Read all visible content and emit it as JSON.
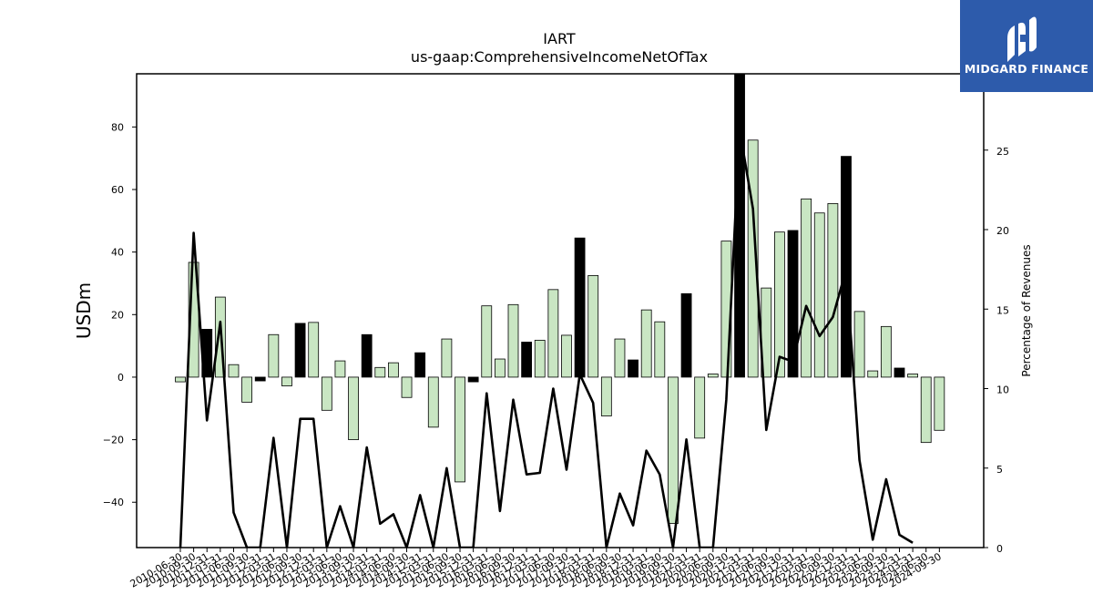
{
  "chart_data": {
    "type": "bar",
    "title": "IART",
    "subtitle": "us-gaap:ComprehensiveIncomeNetOfTax",
    "ylabel": "USDm",
    "ylabel_right": "Percentage of Revenues",
    "ylim": [
      -54.5,
      97
    ],
    "ylim_right": [
      0,
      29.8
    ],
    "yticks": [
      -40,
      -20,
      0,
      20,
      40,
      60,
      80
    ],
    "yticks_right": [
      0,
      5,
      10,
      15,
      20,
      25
    ],
    "x_tick_labels": [
      "2010-06-30",
      "2010-09-30",
      "2010-12-31",
      "2011-03-31",
      "2011-06-30",
      "2011-09-30",
      "2011-12-31",
      "2012-03-31",
      "2012-06-30",
      "2012-09-30",
      "2012-12-31",
      "2013-03-31",
      "2013-06-30",
      "2013-09-30",
      "2013-12-31",
      "2014-03-31",
      "2014-06-30",
      "2014-09-30",
      "2014-12-31",
      "2015-03-31",
      "2015-06-30",
      "2015-09-30",
      "2015-12-31",
      "2016-03-31",
      "2016-06-30",
      "2016-09-30",
      "2016-12-31",
      "2017-03-31",
      "2017-06-30",
      "2017-09-30",
      "2017-12-31",
      "2018-03-31",
      "2018-06-30",
      "2018-09-30",
      "2018-12-31",
      "2019-03-31",
      "2019-06-30",
      "2019-09-30",
      "2019-12-31",
      "2020-03-31",
      "2020-06-30",
      "2020-09-30",
      "2020-12-31",
      "2021-03-31",
      "2021-06-30",
      "2021-09-30",
      "2021-12-31",
      "2022-03-31",
      "2022-06-30",
      "2022-09-30",
      "2022-12-31",
      "2023-03-31",
      "2023-06-30",
      "2023-09-30",
      "2023-12-31",
      "2024-03-31",
      "2024-06-30",
      "2024-09-30"
    ],
    "categories": [
      "2010-06-30",
      "2010-09-30",
      "2010-12-31",
      "2011-03-31",
      "2011-06-30",
      "2011-09-30",
      "2011-12-31",
      "2012-03-31",
      "2012-06-30",
      "2012-09-30",
      "2012-12-31",
      "2013-03-31",
      "2013-06-30",
      "2013-09-30",
      "2013-12-31",
      "2014-03-31",
      "2014-06-30",
      "2014-09-30",
      "2014-12-31",
      "2015-03-31",
      "2015-06-30",
      "2015-09-30",
      "2015-12-31",
      "2016-03-31",
      "2016-06-30",
      "2016-09-30",
      "2016-12-31",
      "2017-03-31",
      "2017-06-30",
      "2017-09-30",
      "2017-12-31",
      "2018-03-31",
      "2018-06-30",
      "2018-09-30",
      "2018-12-31",
      "2019-03-31",
      "2019-06-30",
      "2019-09-30",
      "2019-12-31",
      "2020-03-31",
      "2020-06-30",
      "2020-09-30",
      "2020-12-31",
      "2021-03-31",
      "2021-06-30",
      "2021-09-30",
      "2021-12-31",
      "2022-03-31",
      "2022-06-30",
      "2022-09-30",
      "2022-12-31",
      "2023-03-31",
      "2023-06-30",
      "2023-09-30",
      "2023-12-31",
      "2024-03-31",
      "2024-06-30",
      "2024-09-30"
    ],
    "series": [
      {
        "values": [
          -1.5,
          36.7,
          15.3,
          25.6,
          4.0,
          -8.0,
          -1.2,
          13.6,
          -2.8,
          17.2,
          17.5,
          -10.6,
          5.2,
          -20.0,
          13.6,
          3.1,
          4.6,
          -6.5,
          7.8,
          -16.0,
          12.2,
          -33.5,
          -1.5,
          22.8,
          5.8,
          23.2,
          11.2,
          11.8,
          28.0,
          13.4,
          44.5,
          32.5,
          -12.4,
          12.2,
          5.5,
          21.5,
          17.7,
          -46.8,
          26.7,
          -19.5,
          1.0,
          43.5,
          97.0,
          75.8,
          28.5,
          46.4,
          46.9,
          57.0,
          52.5,
          55.5,
          70.6,
          21.0,
          2.0,
          16.2,
          2.9,
          1.0,
          -20.9,
          -17.0
        ]
      },
      {
        "values": [
          0,
          19.8,
          8.0,
          14.2,
          2.2,
          0,
          0,
          6.9,
          0,
          8.1,
          8.1,
          0,
          2.6,
          0,
          6.3,
          1.5,
          2.1,
          0,
          3.3,
          0,
          5.0,
          0,
          0,
          9.7,
          2.3,
          9.3,
          4.6,
          4.7,
          10.0,
          4.9,
          10.9,
          9.1,
          0,
          3.4,
          1.4,
          6.1,
          4.6,
          0,
          6.8,
          0,
          0,
          9.3,
          26.3,
          21.3,
          7.4,
          12.0,
          11.7,
          15.2,
          13.3,
          14.5,
          17.5,
          5.5,
          0.5,
          4.3,
          0.8,
          0.3,
          null,
          null
        ]
      }
    ],
    "colors": {
      "positive_fill": "#c9e6c3",
      "highlight_fill": "#000000",
      "bar_edge": "#000000",
      "line": "#000000"
    },
    "highlight_indices": [
      2,
      6,
      9,
      14,
      18,
      22,
      26,
      30,
      34,
      38,
      42,
      46,
      50,
      54
    ]
  },
  "logo": {
    "text": "MIDGARD FINANCE"
  }
}
